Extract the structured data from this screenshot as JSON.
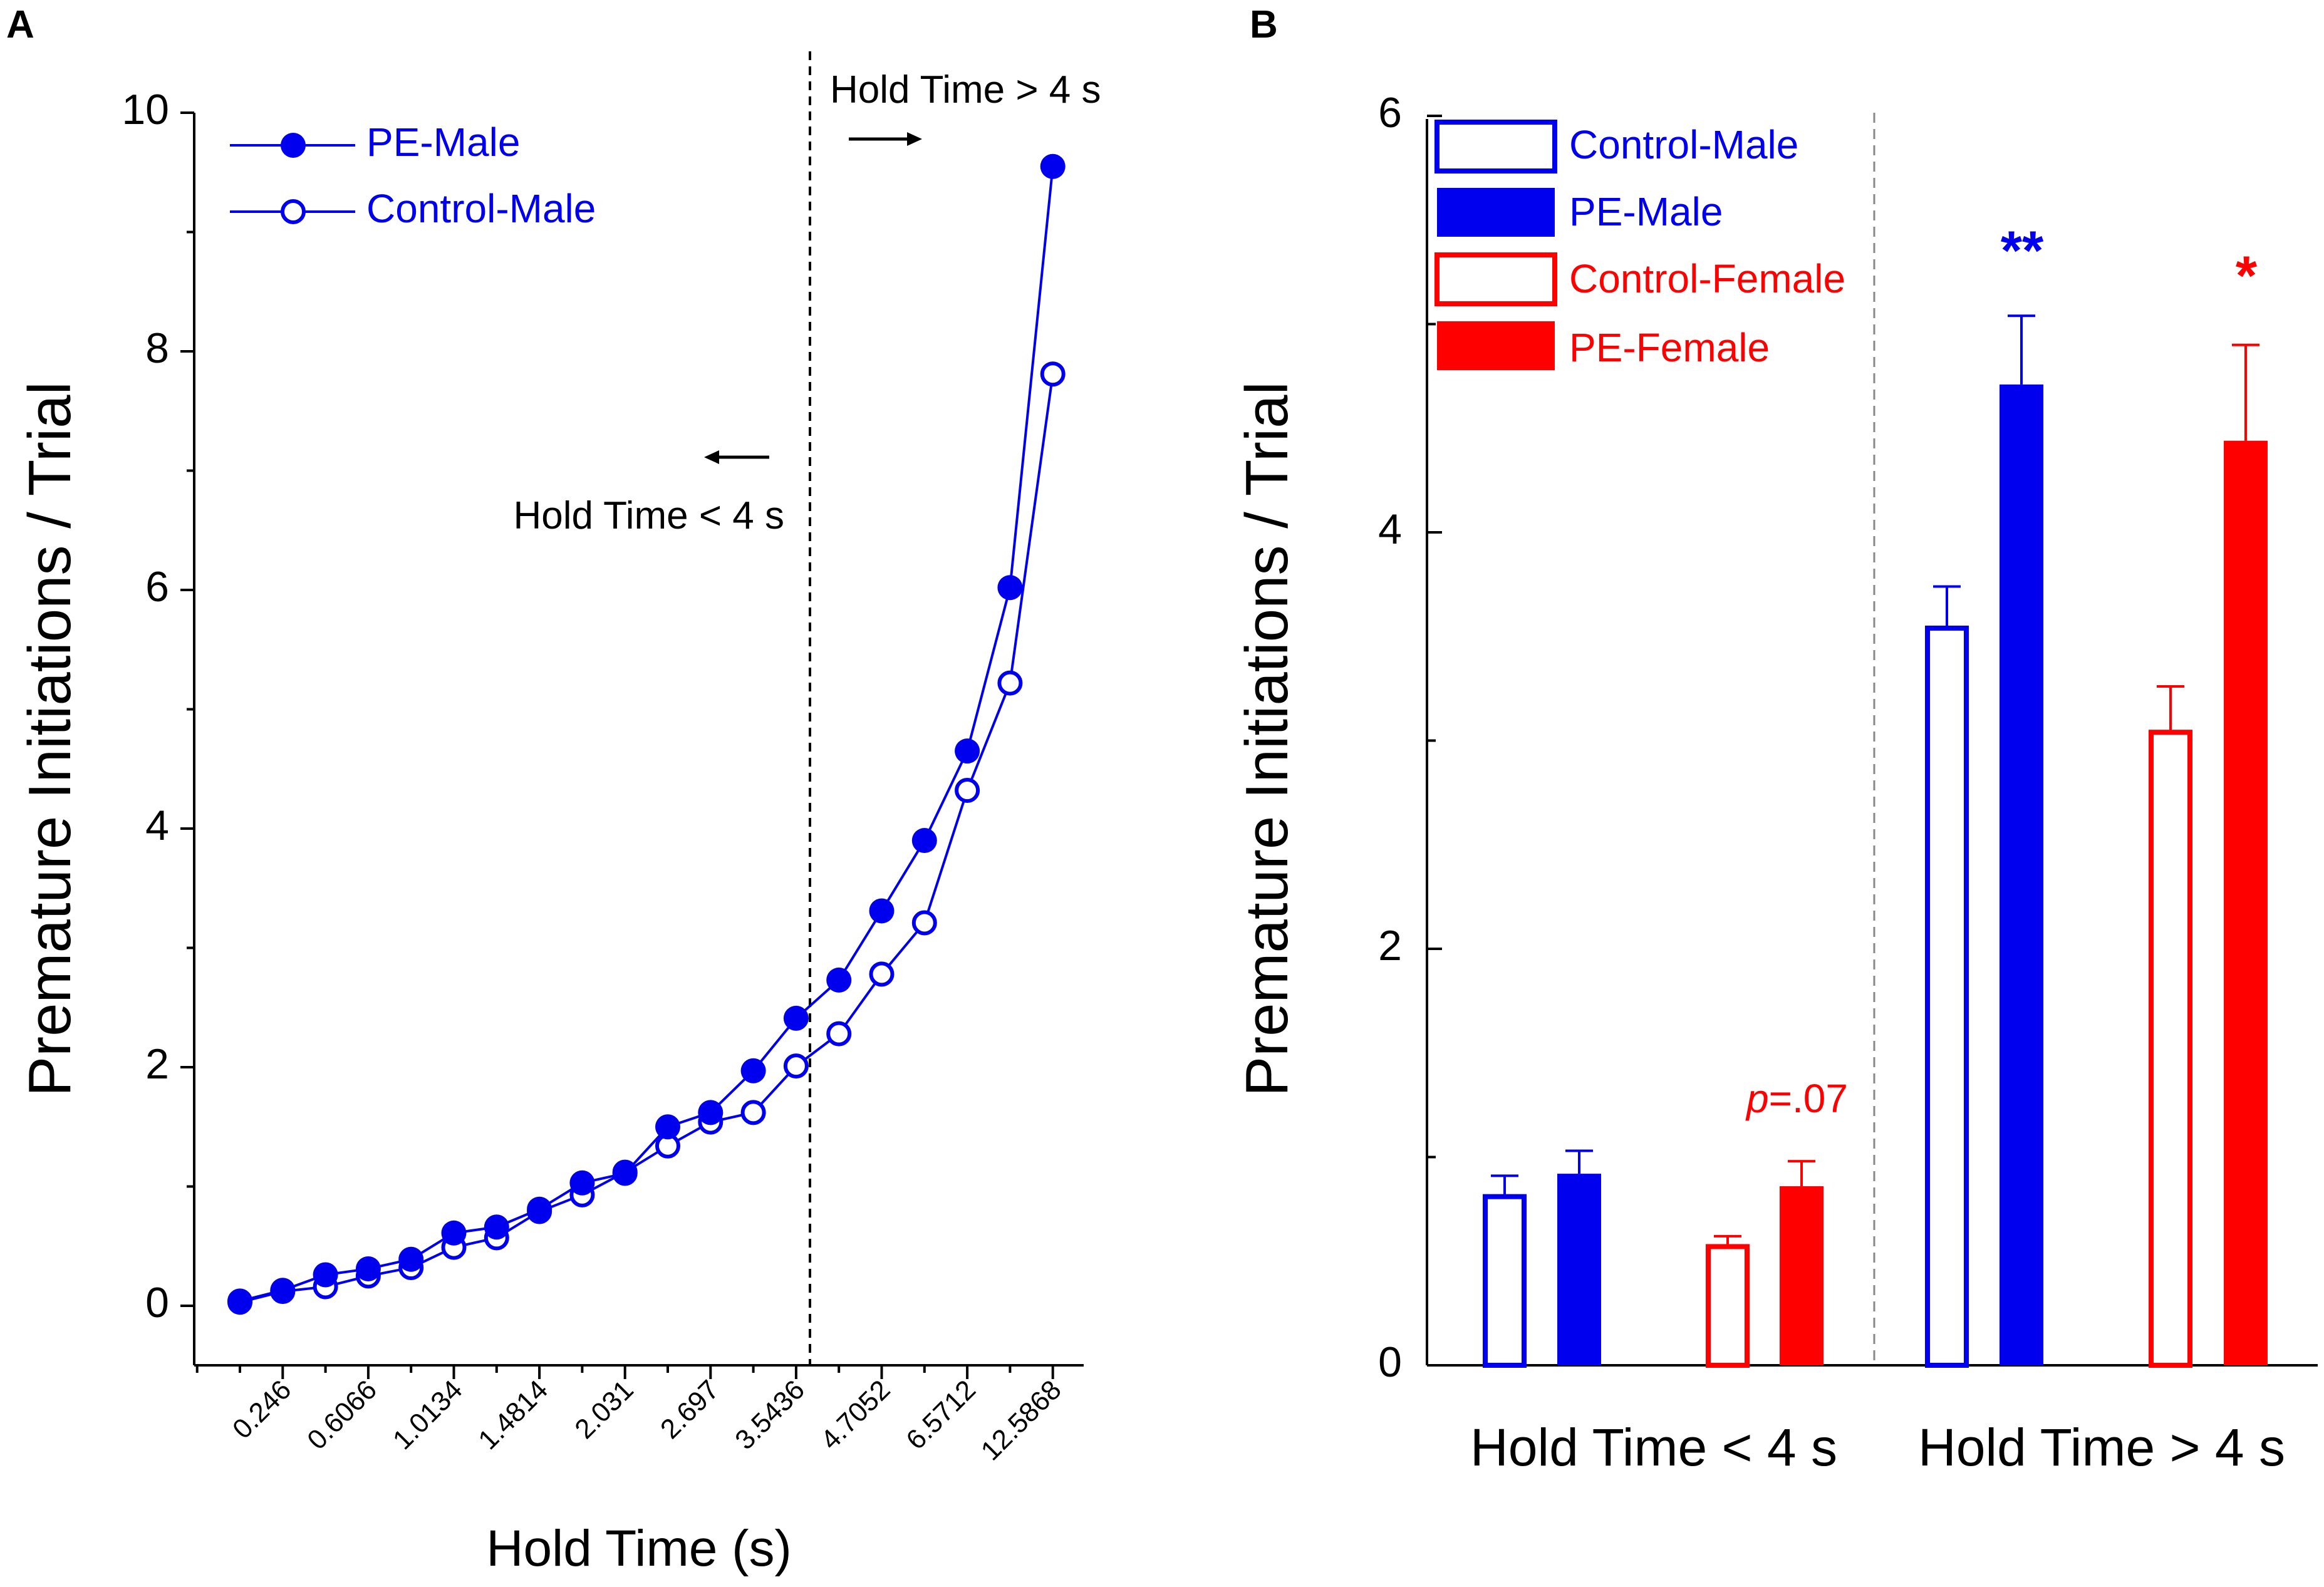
{
  "colors": {
    "blue": "#0000ee",
    "red": "#ff0000",
    "axis": "#000000",
    "divider": "#888888"
  },
  "chart_data": [
    {
      "panel_label": "A",
      "type": "line",
      "title": "",
      "xlabel": "Hold Time (s)",
      "ylabel": "Premature Initiations / Trial",
      "ylim": [
        -0.5,
        10
      ],
      "yticks": [
        "0",
        "2",
        "4",
        "6",
        "8",
        "10"
      ],
      "x_tick_labels": [
        "0.246",
        "0.6066",
        "1.0134",
        "1.4814",
        "2.031",
        "2.697",
        "3.5436",
        "4.7052",
        "6.5712",
        "12.5868"
      ],
      "n_points": 20,
      "legend_position": "top-left",
      "series": [
        {
          "name": "PE-Male",
          "marker": "filled-circle",
          "values": [
            0.04,
            0.13,
            0.26,
            0.31,
            0.39,
            0.61,
            0.66,
            0.81,
            1.03,
            1.11,
            1.5,
            1.62,
            1.97,
            2.41,
            2.73,
            3.31,
            3.9,
            4.65,
            6.02,
            9.55
          ]
        },
        {
          "name": "Control-Male",
          "marker": "open-circle",
          "values": [
            0.03,
            0.12,
            0.16,
            0.25,
            0.32,
            0.49,
            0.57,
            0.79,
            0.93,
            1.12,
            1.34,
            1.54,
            1.62,
            2.01,
            2.28,
            2.78,
            3.21,
            4.32,
            5.22,
            7.81
          ]
        }
      ],
      "annotations": {
        "divider_label_right": "Hold Time > 4 s",
        "divider_label_left": "Hold Time < 4 s"
      }
    },
    {
      "panel_label": "B",
      "type": "bar",
      "title": "",
      "xlabel": "",
      "ylabel": "Premature Initiations / Trial",
      "ylim": [
        0,
        6
      ],
      "yticks": [
        "0",
        "2",
        "4",
        "6"
      ],
      "legend_position": "top-left",
      "categories": [
        "Hold Time < 4 s",
        "Hold Time > 4 s"
      ],
      "series": [
        {
          "name": "Control-Male",
          "style": "open",
          "color": "blue",
          "values": [
            0.81,
            3.54
          ],
          "errors": [
            0.1,
            0.2
          ]
        },
        {
          "name": "PE-Male",
          "style": "filled",
          "color": "blue",
          "values": [
            0.92,
            4.71
          ],
          "errors": [
            0.11,
            0.33
          ]
        },
        {
          "name": "Control-Female",
          "style": "open",
          "color": "red",
          "values": [
            0.57,
            3.04
          ],
          "errors": [
            0.05,
            0.22
          ]
        },
        {
          "name": "PE-Female",
          "style": "filled",
          "color": "red",
          "values": [
            0.86,
            4.44
          ],
          "errors": [
            0.12,
            0.46
          ]
        }
      ],
      "significance": [
        {
          "series": "PE-Male",
          "category": "Hold Time > 4 s",
          "label": "**"
        },
        {
          "series": "PE-Female",
          "category": "Hold Time > 4 s",
          "label": "*"
        }
      ],
      "annotations": {
        "p_prefix": "p",
        "p_value": "=.07"
      }
    }
  ]
}
